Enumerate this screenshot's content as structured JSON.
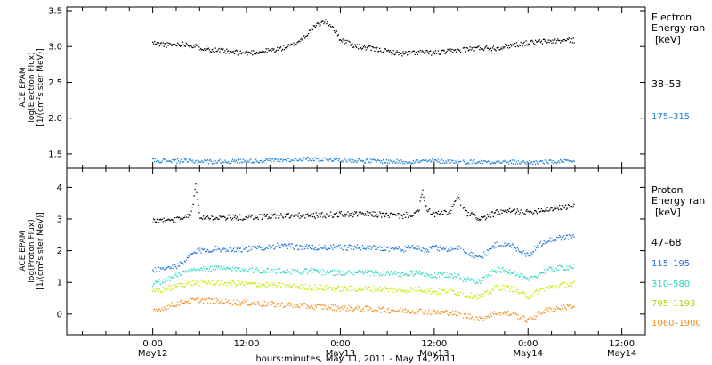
{
  "chart_data": [
    {
      "type": "scatter",
      "ylabel_lines": [
        "ACE EPAM",
        "log(Electron Flux)",
        "[1/(cm²s ster MeV)]"
      ],
      "ylim": [
        1.3,
        3.55
      ],
      "yticks": [
        "1.5",
        "2.0",
        "2.5",
        "3.0",
        "3.5"
      ],
      "legend": {
        "title_lines": [
          "Electron",
          "Energy ran",
          "[keV]"
        ],
        "placement": "right"
      },
      "series": [
        {
          "name": "38–53",
          "color": "#000000",
          "x": [
            0,
            4,
            8,
            12,
            16,
            20,
            24,
            28,
            32,
            36,
            38,
            40,
            42,
            44,
            46,
            48,
            52,
            56,
            60,
            64,
            68,
            72,
            76,
            80,
            84,
            88,
            92,
            96,
            100,
            104,
            108
          ],
          "y": [
            3.05,
            3.02,
            3.04,
            2.99,
            2.95,
            2.92,
            2.91,
            2.93,
            2.96,
            3.02,
            3.1,
            3.2,
            3.3,
            3.35,
            3.28,
            3.1,
            3.0,
            2.97,
            2.93,
            2.9,
            2.92,
            2.91,
            2.93,
            2.96,
            2.98,
            2.98,
            3.02,
            3.05,
            3.07,
            3.08,
            3.09
          ]
        },
        {
          "name": "175–315",
          "color": "#1f80d8",
          "x": [
            0,
            8,
            16,
            24,
            32,
            40,
            48,
            56,
            64,
            72,
            80,
            88,
            96,
            104,
            108
          ],
          "y": [
            1.41,
            1.4,
            1.39,
            1.4,
            1.41,
            1.43,
            1.42,
            1.4,
            1.39,
            1.4,
            1.39,
            1.39,
            1.38,
            1.39,
            1.39
          ]
        }
      ]
    },
    {
      "type": "scatter",
      "ylabel_lines": [
        "ACE EPAM",
        "log(Proton Flux)",
        "[1/(cm²s ster MeV)]"
      ],
      "ylim": [
        -0.65,
        4.6
      ],
      "yticks": [
        "0",
        "1",
        "2",
        "3",
        "4"
      ],
      "legend": {
        "title_lines": [
          "Proton",
          "Energy ran",
          "[keV]"
        ],
        "placement": "right"
      },
      "series": [
        {
          "name": "47–68",
          "color": "#000000",
          "x": [
            0,
            4,
            8,
            10,
            11,
            12,
            16,
            24,
            32,
            40,
            48,
            56,
            64,
            68,
            69,
            70,
            72,
            76,
            78,
            80,
            82,
            84,
            88,
            92,
            96,
            100,
            104,
            108
          ],
          "y": [
            2.95,
            2.95,
            3.0,
            3.2,
            4.1,
            3.05,
            3.05,
            3.05,
            3.1,
            3.1,
            3.15,
            3.15,
            3.1,
            3.2,
            3.9,
            3.3,
            3.15,
            3.2,
            3.7,
            3.2,
            3.1,
            3.0,
            3.2,
            3.25,
            3.2,
            3.3,
            3.35,
            3.4
          ]
        },
        {
          "name": "115–195",
          "color": "#1f70d8",
          "x": [
            0,
            4,
            8,
            10,
            12,
            16,
            24,
            32,
            40,
            48,
            56,
            64,
            68,
            70,
            72,
            76,
            78,
            80,
            84,
            88,
            92,
            96,
            100,
            104,
            108
          ],
          "y": [
            1.4,
            1.45,
            1.6,
            1.9,
            2.0,
            2.05,
            2.05,
            2.15,
            2.1,
            2.1,
            2.1,
            2.05,
            2.1,
            2.0,
            2.1,
            2.05,
            2.1,
            1.95,
            1.8,
            2.2,
            2.15,
            1.85,
            2.3,
            2.4,
            2.45
          ]
        },
        {
          "name": "310–580",
          "color": "#28d8c0",
          "x": [
            0,
            4,
            8,
            12,
            16,
            24,
            32,
            40,
            48,
            56,
            64,
            68,
            72,
            76,
            80,
            84,
            88,
            92,
            96,
            100,
            104,
            108
          ],
          "y": [
            0.95,
            1.1,
            1.3,
            1.4,
            1.45,
            1.4,
            1.35,
            1.35,
            1.3,
            1.3,
            1.25,
            1.3,
            1.2,
            1.25,
            1.1,
            1.05,
            1.4,
            1.35,
            1.05,
            1.35,
            1.45,
            1.5
          ]
        },
        {
          "name": "795–1193",
          "color": "#c8e800",
          "x": [
            0,
            4,
            8,
            12,
            16,
            24,
            32,
            40,
            48,
            56,
            64,
            68,
            72,
            76,
            80,
            84,
            88,
            92,
            96,
            100,
            104,
            108
          ],
          "y": [
            0.7,
            0.8,
            0.95,
            1.0,
            1.0,
            0.95,
            0.9,
            0.85,
            0.8,
            0.8,
            0.75,
            0.8,
            0.7,
            0.75,
            0.6,
            0.55,
            0.85,
            0.8,
            0.55,
            0.8,
            0.9,
            0.95
          ]
        },
        {
          "name": "1060–1900",
          "color": "#f08c18",
          "x": [
            0,
            4,
            8,
            12,
            16,
            24,
            32,
            40,
            48,
            56,
            64,
            68,
            72,
            76,
            80,
            84,
            88,
            92,
            96,
            100,
            104,
            108
          ],
          "y": [
            0.05,
            0.25,
            0.4,
            0.45,
            0.4,
            0.35,
            0.3,
            0.25,
            0.2,
            0.15,
            0.1,
            0.1,
            0.05,
            0.05,
            -0.05,
            -0.15,
            0.05,
            0.0,
            -0.2,
            0.1,
            0.2,
            0.25
          ]
        }
      ]
    }
  ],
  "x_axis": {
    "xlim": [
      -22,
      126
    ],
    "gap": [
      78.8,
      79.4
    ],
    "major_ticks": [
      {
        "x": 0,
        "line1": "0:00",
        "line2": "May12"
      },
      {
        "x": 24,
        "line1": "12:00",
        "line2": ""
      },
      {
        "x": 48,
        "line1": "0:00",
        "line2": "May13"
      },
      {
        "x": 72,
        "line1": "12:00",
        "line2": "May13"
      },
      {
        "x": 96,
        "line1": "0:00",
        "line2": "May14"
      },
      {
        "x": 120,
        "line1": "12:00",
        "line2": "May14"
      }
    ],
    "minor_step": 6,
    "title": "hours:minutes, May 11, 2011 - May 14, 2011"
  }
}
